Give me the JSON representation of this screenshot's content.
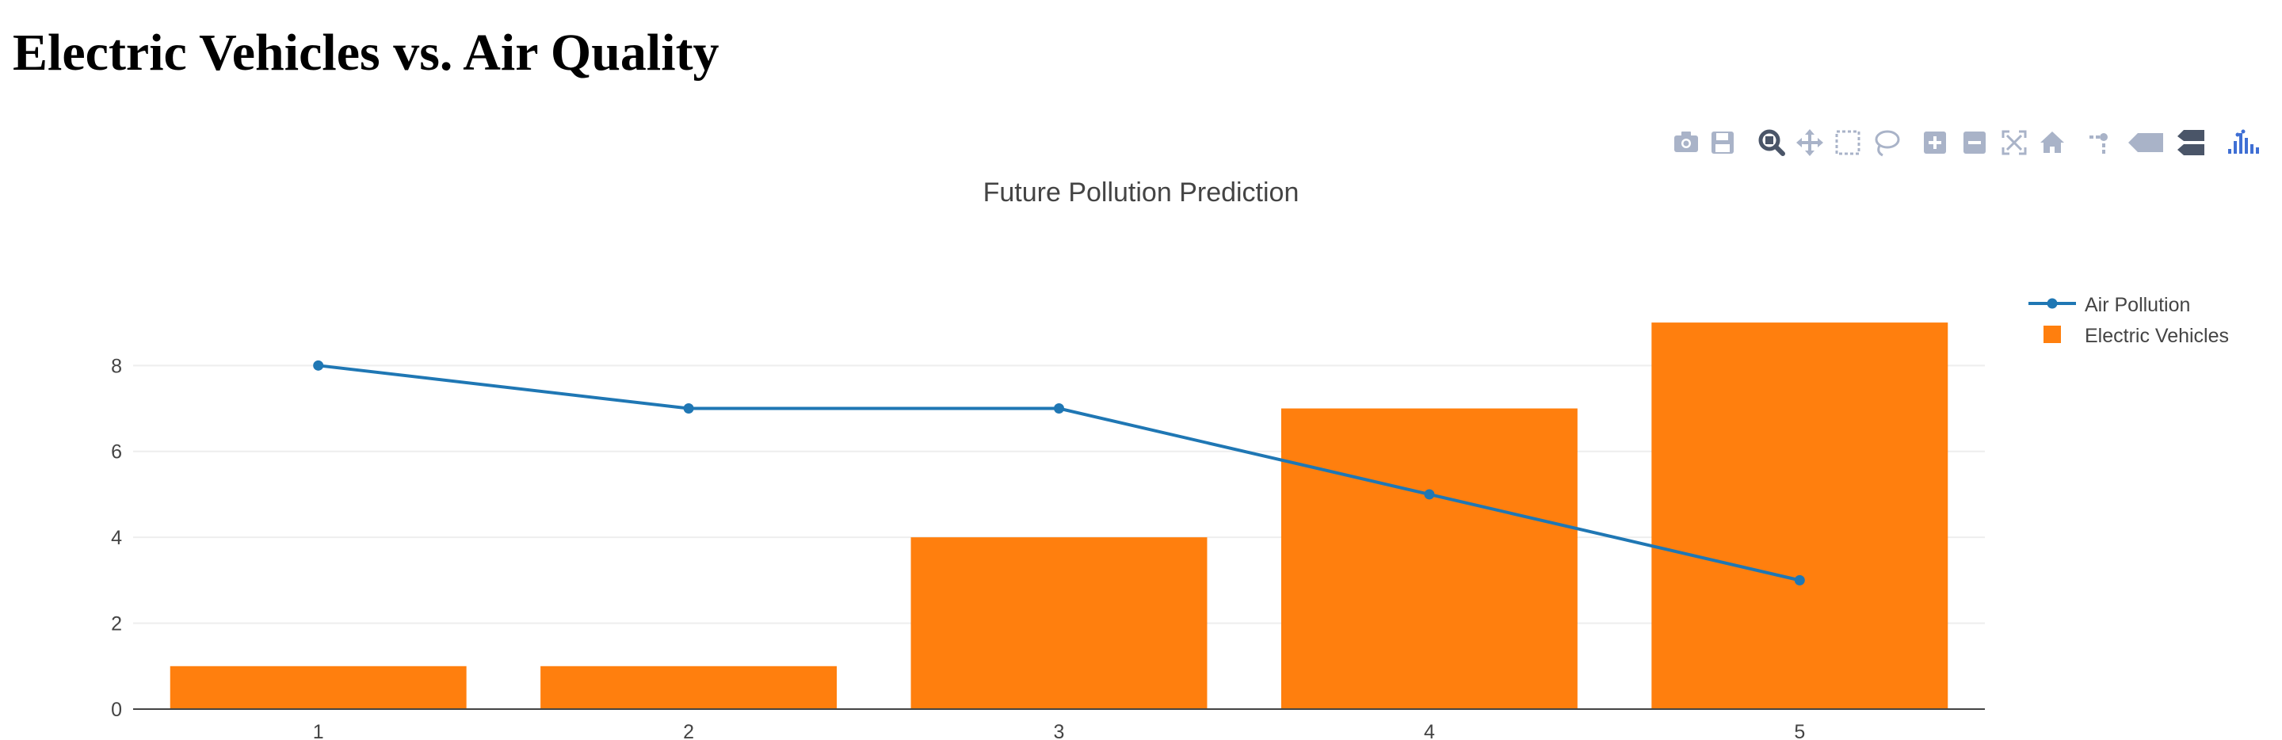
{
  "page": {
    "title": "Electric Vehicles vs. Air Quality"
  },
  "modebar": {
    "buttons": [
      {
        "name": "camera-icon",
        "active": false
      },
      {
        "name": "save-icon",
        "active": false
      },
      {
        "name": "zoom-icon",
        "active": true
      },
      {
        "name": "pan-icon",
        "active": false
      },
      {
        "name": "box-select-icon",
        "active": false
      },
      {
        "name": "lasso-select-icon",
        "active": false
      },
      {
        "name": "zoom-in-icon",
        "active": false
      },
      {
        "name": "zoom-out-icon",
        "active": false
      },
      {
        "name": "autoscale-icon",
        "active": false
      },
      {
        "name": "reset-axes-icon",
        "active": false
      },
      {
        "name": "spike-lines-icon",
        "active": false
      },
      {
        "name": "hover-closest-icon",
        "active": false
      },
      {
        "name": "hover-compare-icon",
        "active": false
      },
      {
        "name": "plotly-logo-icon",
        "active": false
      }
    ]
  },
  "chart_data": {
    "type": "bar",
    "title": "Future Pollution Prediction",
    "xlabel": "",
    "ylabel": "",
    "x": [
      1,
      2,
      3,
      4,
      5
    ],
    "xticks": [
      "1",
      "2",
      "3",
      "4",
      "5"
    ],
    "yticks": [
      "0",
      "2",
      "4",
      "6",
      "8"
    ],
    "ylim": [
      0,
      9.5
    ],
    "grid": true,
    "legend_position": "top-right",
    "series": [
      {
        "name": "Air Pollution",
        "type": "line",
        "color": "#1f77b4",
        "values": [
          8,
          7,
          7,
          5,
          3
        ]
      },
      {
        "name": "Electric Vehicles",
        "type": "bar",
        "color": "#ff7f0e",
        "values": [
          1,
          1,
          4,
          7,
          9
        ]
      }
    ]
  }
}
